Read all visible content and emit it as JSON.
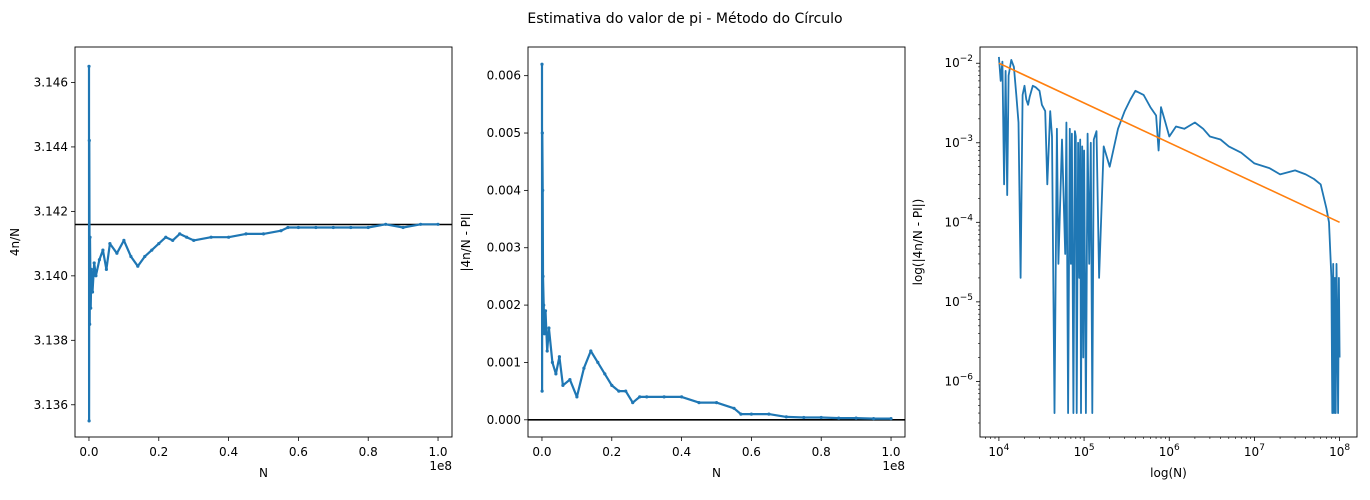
{
  "figure_title": "Estimativa do valor de pi - Método do Círculo",
  "chart_data": [
    {
      "type": "scatter",
      "xlabel": "N",
      "ylabel": "4n/N",
      "x_offset_label": "1e8",
      "xlim": [
        -4000000,
        104000000
      ],
      "ylim": [
        3.135,
        3.1471
      ],
      "xticks": [
        0,
        20000000,
        40000000,
        60000000,
        80000000,
        100000000
      ],
      "xtick_labels": [
        "0.0",
        "0.2",
        "0.4",
        "0.6",
        "0.8",
        "1.0"
      ],
      "yticks": [
        3.136,
        3.138,
        3.14,
        3.142,
        3.144,
        3.146
      ],
      "ytick_labels": [
        "3.136",
        "3.138",
        "3.140",
        "3.142",
        "3.144",
        "3.146"
      ],
      "hline": {
        "y": 3.141593,
        "color": "#000000"
      },
      "series_color": "#1f77b4",
      "series": [
        {
          "x": [
            0,
            50000,
            100000,
            200000,
            300000,
            500000,
            700000,
            1000000,
            1500000,
            2000000,
            3000000,
            4000000,
            5000000,
            6000000,
            8000000,
            10000000,
            12000000,
            14000000,
            16000000,
            18000000,
            20000000,
            22000000,
            24000000,
            26000000,
            28000000,
            30000000,
            35000000,
            40000000,
            45000000,
            50000000,
            55000000,
            57000000,
            60000000,
            65000000,
            70000000,
            75000000,
            80000000,
            85000000,
            90000000,
            95000000,
            100000000
          ],
          "y": [
            3.1465,
            3.1355,
            3.1442,
            3.1385,
            3.1412,
            3.139,
            3.1402,
            3.1395,
            3.1404,
            3.14,
            3.1405,
            3.1408,
            3.1402,
            3.141,
            3.1407,
            3.1411,
            3.1406,
            3.1403,
            3.1406,
            3.1408,
            3.141,
            3.1412,
            3.1411,
            3.1413,
            3.1412,
            3.1411,
            3.1412,
            3.1412,
            3.1413,
            3.1413,
            3.1414,
            3.1415,
            3.1415,
            3.1415,
            3.1415,
            3.1415,
            3.1415,
            3.1416,
            3.1415,
            3.1416,
            3.1416
          ]
        }
      ]
    },
    {
      "type": "scatter",
      "xlabel": "N",
      "ylabel": "|4n/N - PI|",
      "x_offset_label": "1e8",
      "xlim": [
        -4000000,
        104000000
      ],
      "ylim": [
        -0.0003,
        0.0065
      ],
      "xticks": [
        0,
        20000000,
        40000000,
        60000000,
        80000000,
        100000000
      ],
      "xtick_labels": [
        "0.0",
        "0.2",
        "0.4",
        "0.6",
        "0.8",
        "1.0"
      ],
      "yticks": [
        0,
        0.001,
        0.002,
        0.003,
        0.004,
        0.005,
        0.006
      ],
      "ytick_labels": [
        "0.000",
        "0.001",
        "0.002",
        "0.003",
        "0.004",
        "0.005",
        "0.006"
      ],
      "hline": {
        "y": 0,
        "color": "#000000"
      },
      "series_color": "#1f77b4",
      "series": [
        {
          "x": [
            0,
            50000,
            100000,
            200000,
            300000,
            500000,
            700000,
            1000000,
            1500000,
            2000000,
            3000000,
            4000000,
            5000000,
            6000000,
            8000000,
            10000000,
            12000000,
            14000000,
            16000000,
            18000000,
            20000000,
            22000000,
            24000000,
            26000000,
            28000000,
            30000000,
            35000000,
            40000000,
            45000000,
            50000000,
            55000000,
            57000000,
            60000000,
            65000000,
            70000000,
            75000000,
            80000000,
            85000000,
            90000000,
            95000000,
            100000000
          ],
          "y": [
            0.0062,
            0.0005,
            0.005,
            0.004,
            0.0025,
            0.002,
            0.0015,
            0.0019,
            0.0012,
            0.0016,
            0.001,
            0.0008,
            0.0011,
            0.0006,
            0.0007,
            0.0004,
            0.0009,
            0.0012,
            0.001,
            0.0008,
            0.0006,
            0.0005,
            0.0005,
            0.0003,
            0.0004,
            0.0004,
            0.0004,
            0.0004,
            0.0003,
            0.0003,
            0.0002,
            0.0001,
            0.0001,
            0.0001,
            5e-05,
            4e-05,
            4e-05,
            3e-05,
            3e-05,
            2e-05,
            2e-05
          ]
        }
      ]
    },
    {
      "type": "line",
      "xscale": "log",
      "yscale": "log",
      "xlabel": "log(N)",
      "ylabel": "log(|4n/N - PI|)",
      "xlim": [
        6000,
        160000000
      ],
      "ylim": [
        2e-07,
        0.016
      ],
      "xticks": [
        10000,
        100000,
        1000000,
        10000000,
        100000000
      ],
      "xtick_labels": [
        "10^4",
        "10^5",
        "10^6",
        "10^7",
        "10^8"
      ],
      "yticks": [
        1e-06,
        1e-05,
        0.0001,
        0.001,
        0.01
      ],
      "ytick_labels": [
        "10^-6",
        "10^-5",
        "10^-4",
        "10^-3",
        "10^-2"
      ],
      "series": [
        {
          "color": "#1f77b4",
          "x": [
            10000,
            10500,
            11000,
            11500,
            12000,
            12500,
            13000,
            14000,
            15000,
            16000,
            17000,
            18000,
            19000,
            20000,
            21000,
            22000,
            23000,
            25000,
            27000,
            30000,
            32000,
            35000,
            37000,
            40000,
            42000,
            45000,
            48000,
            50000,
            55000,
            60000,
            62000,
            65000,
            68000,
            70000,
            72000,
            75000,
            78000,
            80000,
            82000,
            85000,
            88000,
            90000,
            92000,
            95000,
            98000,
            100000,
            105000,
            110000,
            115000,
            120000,
            125000,
            130000,
            140000,
            150000,
            170000,
            200000,
            250000,
            300000,
            350000,
            400000,
            500000,
            600000,
            700000,
            750000,
            800000,
            900000,
            1000000,
            1200000,
            1500000,
            2000000,
            2500000,
            3000000,
            4000000,
            5000000,
            7000000,
            10000000,
            15000000,
            20000000,
            30000000,
            40000000,
            50000000,
            60000000,
            70000000,
            75000000,
            80000000,
            82000000,
            84000000,
            86000000,
            88000000,
            90000000,
            92000000,
            94000000,
            96000000,
            98000000,
            100000000
          ],
          "y": [
            0.012,
            0.006,
            0.0105,
            0.0003,
            0.008,
            0.00022,
            0.007,
            0.011,
            0.009,
            0.004,
            0.0018,
            2e-05,
            0.004,
            0.0052,
            0.0035,
            0.003,
            0.0038,
            0.0052,
            0.005,
            0.0045,
            0.003,
            0.0025,
            0.0003,
            0.0025,
            0.0012,
            4e-07,
            0.0015,
            3e-05,
            0.0011,
            4e-05,
            0.0018,
            4e-07,
            0.0015,
            3e-05,
            0.0013,
            4e-07,
            0.0014,
            0.0012,
            4e-07,
            0.001,
            2e-05,
            0.0011,
            4e-07,
            0.0009,
            2e-06,
            0.0008,
            4e-07,
            0.0013,
            3e-05,
            0.001,
            4e-07,
            0.0011,
            0.0014,
            2e-05,
            0.0009,
            0.0005,
            0.0015,
            0.0025,
            0.0035,
            0.0045,
            0.004,
            0.0028,
            0.0022,
            0.0008,
            0.0028,
            0.0018,
            0.0012,
            0.0016,
            0.0015,
            0.0018,
            0.0015,
            0.0012,
            0.0011,
            0.0009,
            0.00075,
            0.00055,
            0.00048,
            0.0004,
            0.00045,
            0.0004,
            0.00035,
            0.0003,
            0.00015,
            0.0001,
            2e-05,
            4e-07,
            3e-05,
            4e-07,
            2e-05,
            4e-07,
            3e-05,
            5e-06,
            4e-07,
            2e-05,
            2e-06
          ]
        },
        {
          "color": "#ff7f0e",
          "x": [
            10000,
            100000000
          ],
          "y": [
            0.01,
            0.0001
          ]
        }
      ]
    }
  ]
}
